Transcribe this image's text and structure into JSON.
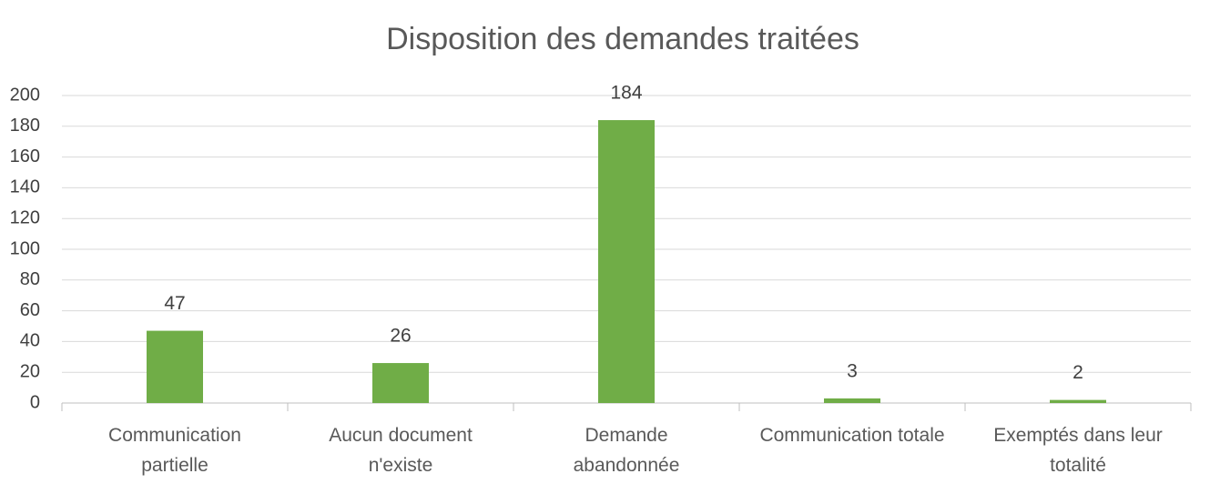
{
  "chart_data": {
    "type": "bar",
    "title": "Disposition des demandes traitées",
    "categories": [
      "Communication\npartielle",
      "Aucun document\nn'existe",
      "Demande\nabandonnée",
      "Communication totale",
      "Exemptés dans leur\ntotalité"
    ],
    "values": [
      47,
      26,
      184,
      3,
      2
    ],
    "color": "#70ad47",
    "ylim": [
      0,
      200
    ],
    "yticks": [
      0,
      20,
      40,
      60,
      80,
      100,
      120,
      140,
      160,
      180,
      200
    ],
    "grid": true
  }
}
